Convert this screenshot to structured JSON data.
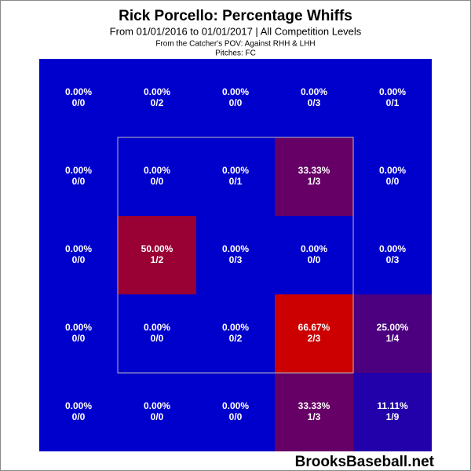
{
  "chart_data": {
    "type": "heatmap",
    "title": "Rick Porcello: Percentage Whiffs",
    "subtitle": "From 01/01/2016 to 01/01/2017 | All Competition Levels",
    "notes": [
      "From the Catcher's POV:  Against RHH & LHH",
      "Pitches:  FC"
    ],
    "watermark": "BrooksBaseball.net",
    "values": [
      [
        0,
        0,
        0,
        0,
        0
      ],
      [
        0,
        0,
        0,
        33.33,
        0
      ],
      [
        0,
        50,
        0,
        0,
        0
      ],
      [
        0,
        0,
        0,
        66.67,
        25
      ],
      [
        0,
        0,
        0,
        33.33,
        11.11
      ]
    ],
    "value_labels": [
      [
        "0.00%",
        "0.00%",
        "0.00%",
        "0.00%",
        "0.00%"
      ],
      [
        "0.00%",
        "0.00%",
        "0.00%",
        "33.33%",
        "0.00%"
      ],
      [
        "0.00%",
        "50.00%",
        "0.00%",
        "0.00%",
        "0.00%"
      ],
      [
        "0.00%",
        "0.00%",
        "0.00%",
        "66.67%",
        "25.00%"
      ],
      [
        "0.00%",
        "0.00%",
        "0.00%",
        "33.33%",
        "11.11%"
      ]
    ],
    "counts": [
      [
        "0/0",
        "0/2",
        "0/0",
        "0/3",
        "0/1"
      ],
      [
        "0/0",
        "0/0",
        "0/1",
        "1/3",
        "0/0"
      ],
      [
        "0/0",
        "1/2",
        "0/3",
        "0/0",
        "0/3"
      ],
      [
        "0/0",
        "0/0",
        "0/2",
        "2/3",
        "1/4"
      ],
      [
        "0/0",
        "0/0",
        "0/0",
        "1/3",
        "1/9"
      ]
    ],
    "clim": [
      0,
      66.67
    ],
    "color_min": "#0000cc",
    "color_max": "#cc0000"
  }
}
